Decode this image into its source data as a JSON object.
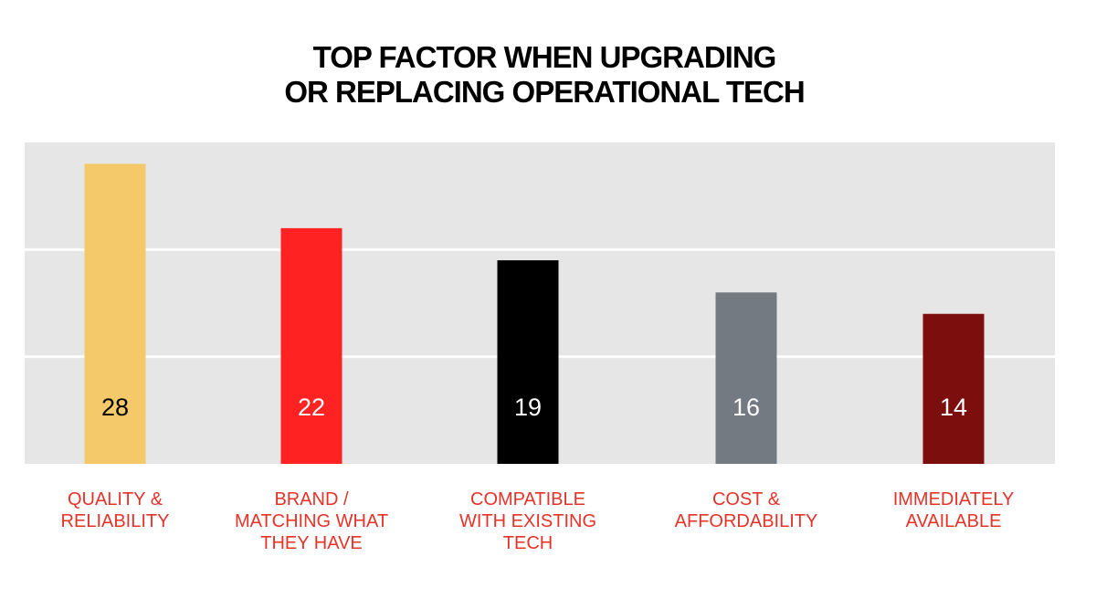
{
  "title_lines": [
    "TOP FACTOR WHEN UPGRADING",
    "OR REPLACING OPERATIONAL TECH"
  ],
  "chart_data": {
    "type": "bar",
    "title": "TOP FACTOR WHEN UPGRADING OR REPLACING OPERATIONAL TECH",
    "categories": [
      "QUALITY & RELIABILITY",
      "BRAND / MATCHING WHAT THEY HAVE",
      "COMPATIBLE WITH EXISTING TECH",
      "COST & AFFORDABILITY",
      "IMMEDIATELY AVAILABLE"
    ],
    "category_label_lines": [
      [
        "QUALITY &",
        "RELIABILITY"
      ],
      [
        "BRAND /",
        "MATCHING WHAT",
        "THEY HAVE"
      ],
      [
        "COMPATIBLE",
        "WITH EXISTING",
        "TECH"
      ],
      [
        "COST &",
        "AFFORDABILITY"
      ],
      [
        "IMMEDIATELY",
        "AVAILABLE"
      ]
    ],
    "values": [
      28,
      22,
      19,
      16,
      14
    ],
    "data_labels": [
      "28",
      "22",
      "19",
      "16",
      "14"
    ],
    "bar_colors": [
      "#f4c96a",
      "#ff2222",
      "#000000",
      "#737a82",
      "#7d0e0e"
    ],
    "data_label_colors": [
      "#000000",
      "#ffffff",
      "#ffffff",
      "#ffffff",
      "#ffffff"
    ],
    "category_label_color": "#e5332a",
    "plot_background": "#e6e6e6",
    "ylim": [
      0,
      30
    ],
    "gridlines": [
      10,
      20
    ],
    "grid": true,
    "legend": "none",
    "xlabel": "",
    "ylabel": ""
  }
}
